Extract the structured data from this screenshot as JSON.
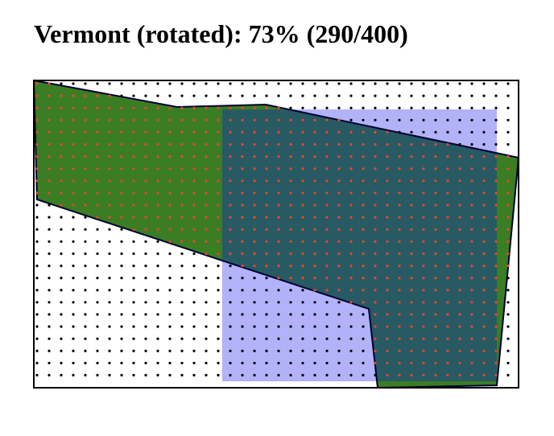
{
  "title": "Vermont (rotated): 73% (290/400)",
  "colors": {
    "background": "#ffffff",
    "frame": "#000000",
    "state_fill": "#3b7d23",
    "overlap_fill": "#275a63",
    "rect_fill": "#b2b2f8",
    "outline": "#000033",
    "dot_outside": "#000000",
    "dot_inside": "#e8472f"
  }
}
